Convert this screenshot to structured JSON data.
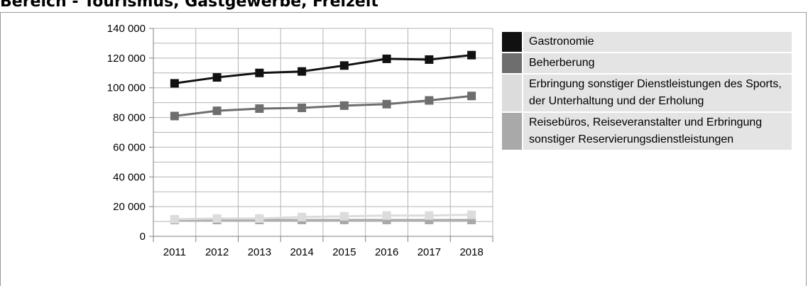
{
  "page": {
    "title": "Bereich - Tourismus, Gastgewerbe, Freizeit"
  },
  "chart_data": {
    "type": "line",
    "title": "",
    "xlabel": "",
    "ylabel": "",
    "categories": [
      "2011",
      "2012",
      "2013",
      "2014",
      "2015",
      "2016",
      "2017",
      "2018"
    ],
    "ylim": [
      0,
      140000
    ],
    "yticks": [
      0,
      20000,
      40000,
      60000,
      80000,
      100000,
      120000,
      140000
    ],
    "ytick_labels": [
      "0",
      "20 000",
      "40 000",
      "60 000",
      "80 000",
      "100 000",
      "120 000",
      "140 000"
    ],
    "grid": true,
    "legend_position": "right",
    "series": [
      {
        "name": "Gastronomie",
        "color": "#111111",
        "values": [
          103000,
          107000,
          110000,
          111000,
          115000,
          119500,
          119000,
          122000
        ]
      },
      {
        "name": "Beherberung",
        "color": "#6e6e6e",
        "values": [
          81000,
          84500,
          86000,
          86500,
          88000,
          89000,
          91500,
          94500
        ]
      },
      {
        "name": "Erbringung sonstiger Dienstleistungen des Sports, der Unterhaltung und der Erholung",
        "color": "#dcdcdc",
        "values": [
          11500,
          12000,
          12000,
          13000,
          13500,
          14000,
          14000,
          14500
        ]
      },
      {
        "name": "Reisebüros, Reiseveranstalter und Erbringung sonstiger Reservierungsdienstleistungen",
        "color": "#a9a9a9",
        "values": [
          11000,
          11000,
          11000,
          11000,
          11000,
          11000,
          11000,
          11000
        ]
      }
    ]
  }
}
